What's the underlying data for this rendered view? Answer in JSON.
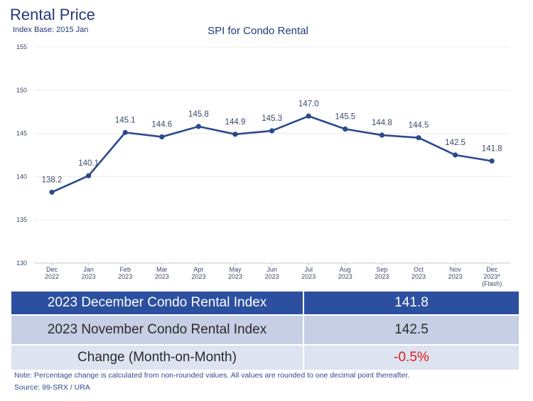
{
  "header": {
    "title": "Rental Price",
    "subtitle": "Index Base: 2015 Jan"
  },
  "chart_data": {
    "type": "line",
    "title": "SPI for Condo Rental",
    "xlabel": "",
    "ylabel": "",
    "ylim": [
      130,
      155
    ],
    "yticks": [
      130,
      135,
      140,
      145,
      150,
      155
    ],
    "grid": true,
    "categories": [
      [
        "Dec",
        "2022"
      ],
      [
        "Jan",
        "2023"
      ],
      [
        "Feb",
        "2023"
      ],
      [
        "Mar",
        "2023"
      ],
      [
        "Apr",
        "2023"
      ],
      [
        "May",
        "2023"
      ],
      [
        "Jun",
        "2023"
      ],
      [
        "Jul",
        "2023"
      ],
      [
        "Aug",
        "2023"
      ],
      [
        "Sep",
        "2023"
      ],
      [
        "Oct",
        "2023"
      ],
      [
        "Nov",
        "2023"
      ],
      [
        "Dec",
        "2023*",
        "(Flash)"
      ]
    ],
    "series": [
      {
        "values": [
          138.2,
          140.1,
          145.1,
          144.6,
          145.8,
          144.9,
          145.3,
          147.0,
          145.5,
          144.8,
          144.5,
          142.5,
          141.8
        ],
        "labels": [
          "138.2",
          "140.1",
          "145.1",
          "144.6",
          "145.8",
          "144.9",
          "145.3",
          "147.0",
          "145.5",
          "144.8",
          "144.5",
          "142.5",
          "141.8"
        ],
        "color": "#2b4a8c"
      }
    ]
  },
  "summary": {
    "rows": [
      {
        "label": "2023 December Condo Rental Index",
        "value": "141.8"
      },
      {
        "label": "2023 November Condo Rental Index",
        "value": "142.5"
      },
      {
        "label": "Change (Month-on-Month)",
        "value": "-0.5%"
      }
    ]
  },
  "colors": {
    "line": "#2b4a8c",
    "header_row": "#2c4fa0",
    "negative": "#e01b1b"
  },
  "footer": {
    "note": "Note: Percentage change is calculated from non-rounded values.  All values are rounded to one decimal point thereafter.",
    "source": "Source: 99-SRX / URA"
  }
}
